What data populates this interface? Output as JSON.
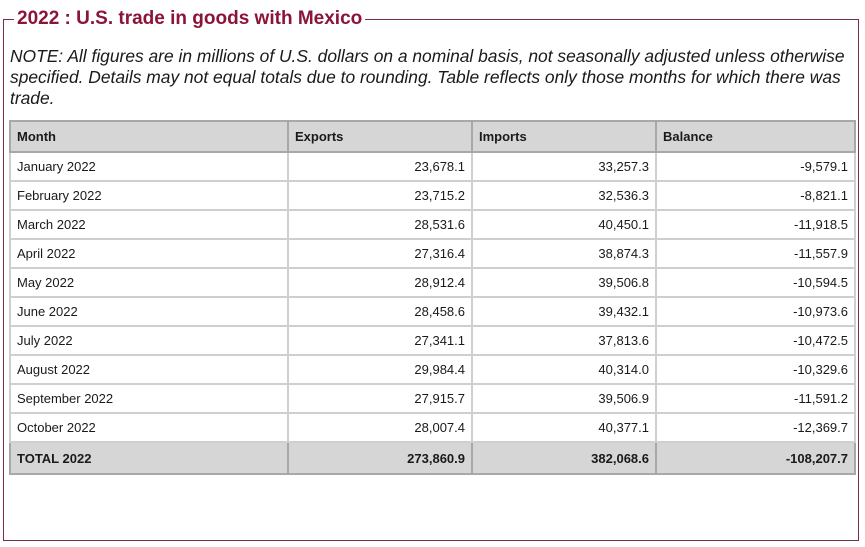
{
  "title": "2022 : U.S. trade in goods with Mexico",
  "note": "NOTE: All figures are in millions of U.S. dollars on a nominal basis, not seasonally adjusted unless otherwise specified. Details may not equal totals due to rounding. Table reflects only those months for which there was trade.",
  "table": {
    "headers": {
      "month": "Month",
      "exports": "Exports",
      "imports": "Imports",
      "balance": "Balance"
    },
    "rows": [
      {
        "month": "January 2022",
        "exports": "23,678.1",
        "imports": "33,257.3",
        "balance": "-9,579.1"
      },
      {
        "month": "February 2022",
        "exports": "23,715.2",
        "imports": "32,536.3",
        "balance": "-8,821.1"
      },
      {
        "month": "March 2022",
        "exports": "28,531.6",
        "imports": "40,450.1",
        "balance": "-11,918.5"
      },
      {
        "month": "April 2022",
        "exports": "27,316.4",
        "imports": "38,874.3",
        "balance": "-11,557.9"
      },
      {
        "month": "May 2022",
        "exports": "28,912.4",
        "imports": "39,506.8",
        "balance": "-10,594.5"
      },
      {
        "month": "June 2022",
        "exports": "28,458.6",
        "imports": "39,432.1",
        "balance": "-10,973.6"
      },
      {
        "month": "July 2022",
        "exports": "27,341.1",
        "imports": "37,813.6",
        "balance": "-10,472.5"
      },
      {
        "month": "August 2022",
        "exports": "29,984.4",
        "imports": "40,314.0",
        "balance": "-10,329.6"
      },
      {
        "month": "September 2022",
        "exports": "27,915.7",
        "imports": "39,506.9",
        "balance": "-11,591.2"
      },
      {
        "month": "October 2022",
        "exports": "28,007.4",
        "imports": "40,377.1",
        "balance": "-12,369.7"
      }
    ],
    "total": {
      "month": "TOTAL 2022",
      "exports": "273,860.9",
      "imports": "382,068.6",
      "balance": "-108,207.7"
    }
  },
  "colors": {
    "title": "#8a1538",
    "frame": "#7b2b52",
    "header_bg": "#d6d6d6"
  }
}
